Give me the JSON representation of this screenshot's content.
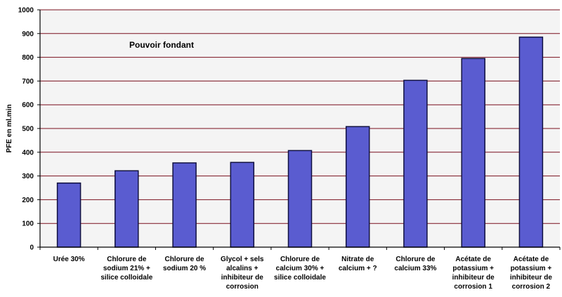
{
  "colors": {
    "plot_background": "#f4f4f4",
    "gridline": "#7a0f1e",
    "bar_fill": "#5a5cd0",
    "bar_stroke": "#101040",
    "axis": "#000000"
  },
  "chart_data": {
    "type": "bar",
    "title": "Pouvoir fondant",
    "xlabel": "",
    "ylabel": "PFE en ml.min",
    "ylim": [
      0,
      1000
    ],
    "yticks": [
      0,
      100,
      200,
      300,
      400,
      500,
      600,
      700,
      800,
      900,
      1000
    ],
    "grid": true,
    "legend": "none",
    "categories": [
      [
        "Urée 30%"
      ],
      [
        "Chlorure de",
        "sodium 21% +",
        "silice colloidale"
      ],
      [
        "Chlorure de",
        "sodium 20 %"
      ],
      [
        "Glycol + sels",
        "alcalins +",
        "inhibiteur de",
        "corrosion"
      ],
      [
        "Chlorure de",
        "calcium 30% +",
        "silice colloidale"
      ],
      [
        "Nitrate de",
        "calcium + ?"
      ],
      [
        "Chlorure de",
        "calcium 33%"
      ],
      [
        "Acétate de",
        "potassium +",
        "inhibiteur de",
        "corrosion 1"
      ],
      [
        "Acétate de",
        "potassium +",
        "inhibiteur de",
        "corrosion 2"
      ]
    ],
    "values": [
      270,
      322,
      355,
      357,
      407,
      508,
      703,
      795,
      885
    ]
  }
}
